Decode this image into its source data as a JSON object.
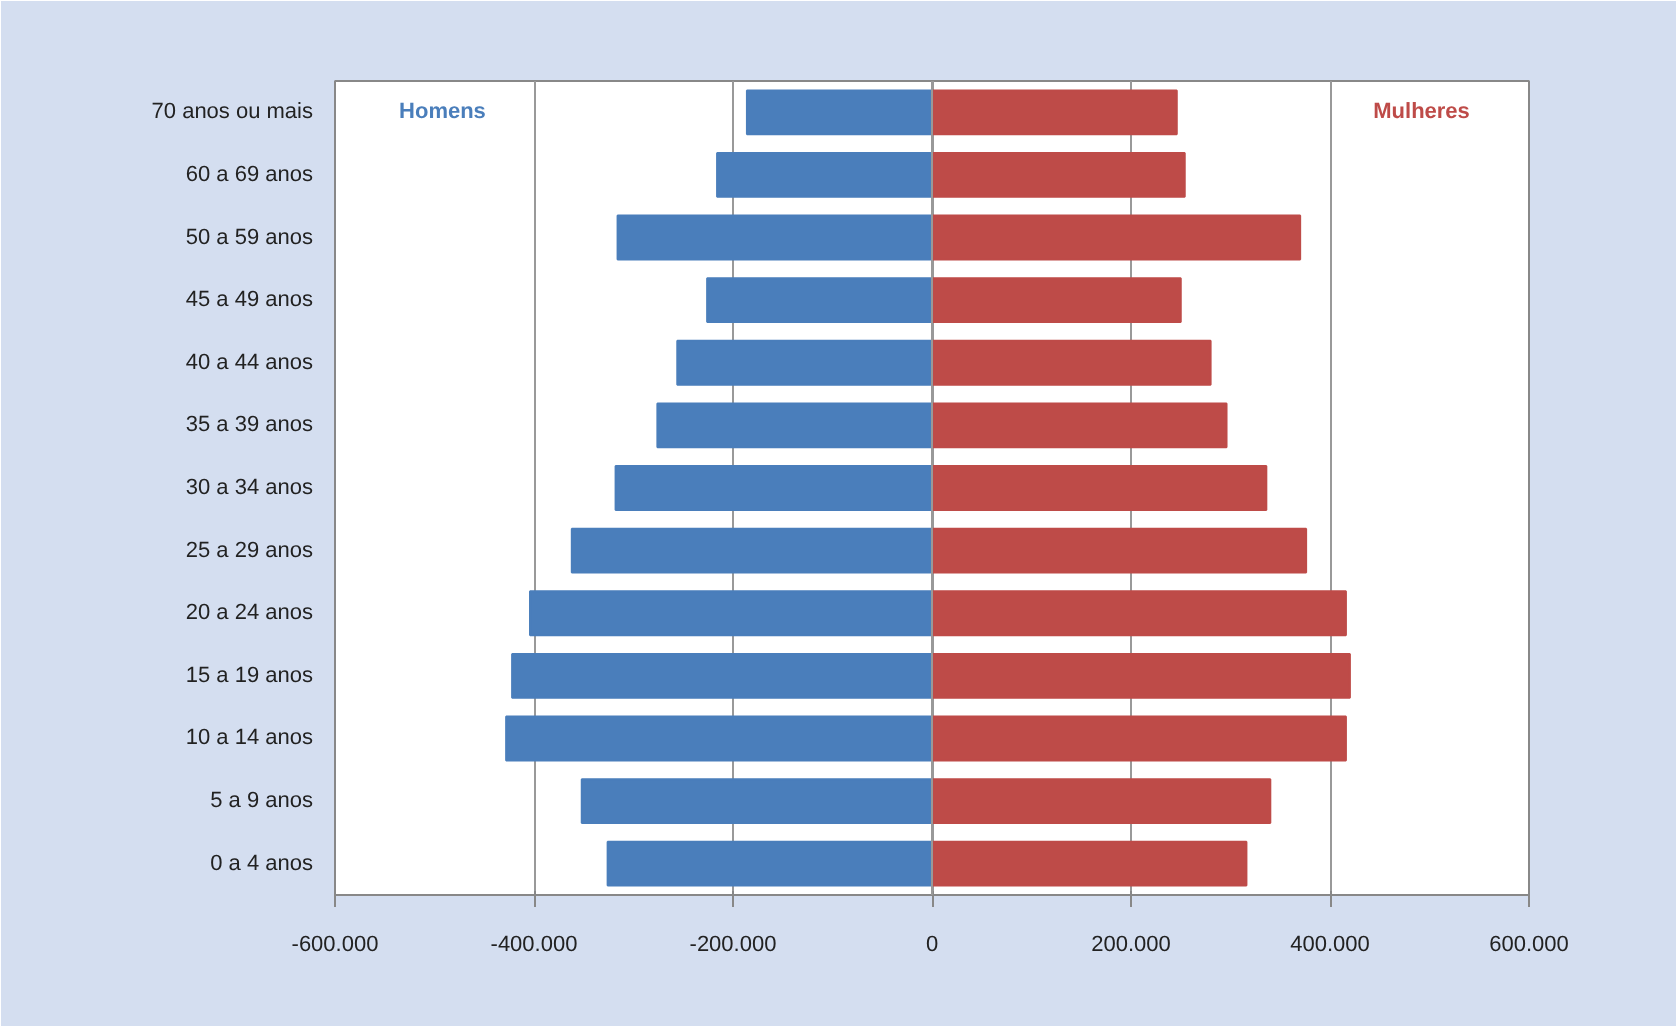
{
  "chart_data": {
    "type": "bar",
    "orientation": "horizontal",
    "categories": [
      "70 anos ou mais",
      "60 a 69 anos",
      "50 a 59 anos",
      "45 a 49 anos",
      "40 a 44 anos",
      "35 a 39 anos",
      "30 a 34 anos",
      "25 a 29 anos",
      "20 a 24 anos",
      "15 a 19 anos",
      "10 a 14 anos",
      "5 a 9 anos",
      "0 a 4 anos"
    ],
    "series": [
      {
        "name": "Homens",
        "color": "#4a7ebb",
        "values": [
          -186000,
          -216000,
          -316000,
          -226000,
          -256000,
          -276000,
          -318000,
          -362000,
          -404000,
          -422000,
          -428000,
          -352000,
          -326000
        ]
      },
      {
        "name": "Mulheres",
        "color": "#be4b48",
        "values": [
          246000,
          254000,
          370000,
          250000,
          280000,
          296000,
          336000,
          376000,
          416000,
          420000,
          416000,
          340000,
          316000
        ]
      }
    ],
    "xlim": [
      -600000,
      600000
    ],
    "xticks": [
      {
        "value": -600000,
        "label": "-600.000"
      },
      {
        "value": -400000,
        "label": "-400.000"
      },
      {
        "value": -200000,
        "label": "-200.000"
      },
      0,
      {
        "value": 200000,
        "label": "200.000"
      },
      {
        "value": 400000,
        "label": "400.000"
      },
      {
        "value": 600000,
        "label": "600.000"
      }
    ],
    "grid": "x",
    "stacked": true
  }
}
